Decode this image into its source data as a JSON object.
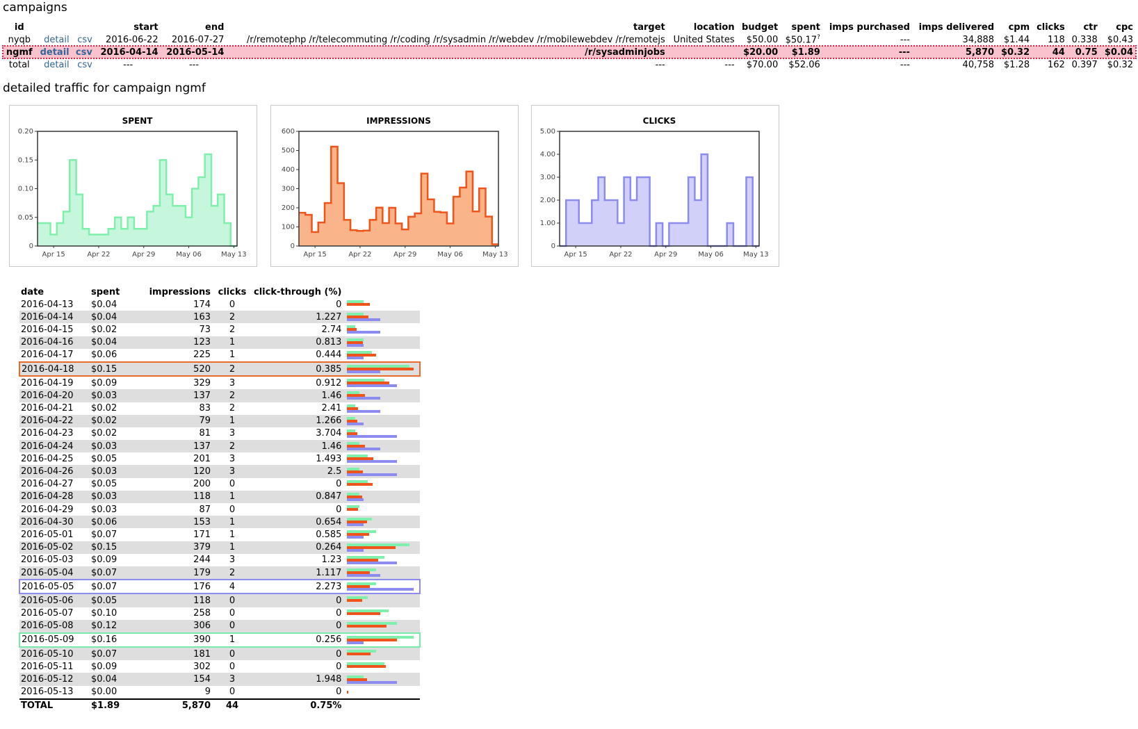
{
  "page": {
    "campaigns_heading": "campaigns",
    "detail_heading": "detailed traffic for campaign ngmf"
  },
  "campaigns": {
    "headers": {
      "id": "id",
      "start": "start",
      "end": "end",
      "target": "target",
      "location": "location",
      "budget": "budget",
      "spent": "spent",
      "imps_purchased": "imps purchased",
      "imps_delivered": "imps delivered",
      "cpm": "cpm",
      "clicks": "clicks",
      "ctr": "ctr",
      "cpc": "cpc"
    },
    "rows": [
      {
        "id": "nyqb",
        "detail": "detail",
        "csv": "csv",
        "start": "2016-06-22",
        "end": "2016-07-27",
        "target": "/r/remotephp /r/telecommuting /r/coding /r/sysadmin /r/webdev /r/mobilewebdev /r/remotejs",
        "location": "United States",
        "budget": "$50.00",
        "spent": "$50.17",
        "spent_note": "?",
        "imps_purchased": "---",
        "imps_delivered": "34,888",
        "cpm": "$1.44",
        "clicks": "118",
        "ctr": "0.338",
        "cpc": "$0.43"
      },
      {
        "id": "ngmf",
        "detail": "detail",
        "csv": "csv",
        "start": "2016-04-14",
        "end": "2016-05-14",
        "target": "/r/sysadminjobs",
        "location": "",
        "budget": "$20.00",
        "spent": "$1.89",
        "spent_note": "",
        "imps_purchased": "---",
        "imps_delivered": "5,870",
        "cpm": "$0.32",
        "clicks": "44",
        "ctr": "0.75",
        "cpc": "$0.04"
      },
      {
        "id": "total",
        "detail": "detail",
        "csv": "csv",
        "start": "---",
        "end": "---",
        "target": "---",
        "location": "---",
        "budget": "$70.00",
        "spent": "$52.06",
        "spent_note": "",
        "imps_purchased": "---",
        "imps_delivered": "40,758",
        "cpm": "$1.28",
        "clicks": "162",
        "ctr": "0.397",
        "cpc": "$0.32"
      }
    ]
  },
  "colors": {
    "spent_fill": "#c6f7dc",
    "spent_line": "#7ff0ac",
    "impr_fill": "#f9b48a",
    "impr_line": "#f0541a",
    "clicks_fill": "#d0d0f8",
    "clicks_line": "#8c8cf0",
    "highlight_row": "#f9c2cc",
    "link": "#336699"
  },
  "chart_data": [
    {
      "type": "area",
      "title": "SPENT",
      "xlabel": "",
      "ylabel": "",
      "ylim": [
        0,
        0.2
      ],
      "yticks": [
        "0",
        "0.05",
        "0.10",
        "0.15",
        "0.20"
      ],
      "ytick_values": [
        0,
        0.05,
        0.1,
        0.15,
        0.2
      ],
      "xticks": [
        "Apr 15",
        "Apr 22",
        "Apr 29",
        "May 06",
        "May 13"
      ],
      "xtick_index": [
        2,
        9,
        16,
        23,
        30
      ],
      "series": [
        {
          "values": [
            0.04,
            0.04,
            0.02,
            0.04,
            0.06,
            0.15,
            0.09,
            0.03,
            0.02,
            0.02,
            0.02,
            0.03,
            0.05,
            0.03,
            0.05,
            0.03,
            0.03,
            0.06,
            0.07,
            0.15,
            0.09,
            0.07,
            0.07,
            0.05,
            0.1,
            0.12,
            0.16,
            0.07,
            0.09,
            0.04,
            0.0
          ]
        }
      ]
    },
    {
      "type": "area",
      "title": "IMPRESSIONS",
      "xlabel": "",
      "ylabel": "",
      "ylim": [
        0,
        600
      ],
      "yticks": [
        "0",
        "100",
        "200",
        "300",
        "400",
        "500",
        "600"
      ],
      "ytick_values": [
        0,
        100,
        200,
        300,
        400,
        500,
        600
      ],
      "xticks": [
        "Apr 15",
        "Apr 22",
        "Apr 29",
        "May 06",
        "May 13"
      ],
      "xtick_index": [
        2,
        9,
        16,
        23,
        30
      ],
      "series": [
        {
          "values": [
            174,
            163,
            73,
            123,
            225,
            520,
            329,
            137,
            83,
            79,
            81,
            137,
            201,
            120,
            200,
            118,
            87,
            153,
            171,
            379,
            244,
            179,
            176,
            118,
            258,
            306,
            390,
            181,
            302,
            154,
            9
          ]
        }
      ]
    },
    {
      "type": "area",
      "title": "CLICKS",
      "xlabel": "",
      "ylabel": "",
      "ylim": [
        0,
        5
      ],
      "yticks": [
        "0",
        "1.00",
        "2.00",
        "3.00",
        "4.00",
        "5.00"
      ],
      "ytick_values": [
        0,
        1,
        2,
        3,
        4,
        5
      ],
      "xticks": [
        "Apr 15",
        "Apr 22",
        "Apr 29",
        "May 06",
        "May 13"
      ],
      "xtick_index": [
        2,
        9,
        16,
        23,
        30
      ],
      "series": [
        {
          "values": [
            0,
            2,
            2,
            1,
            1,
            2,
            3,
            2,
            2,
            1,
            3,
            2,
            3,
            3,
            0,
            1,
            0,
            1,
            1,
            1,
            3,
            2,
            4,
            0,
            0,
            0,
            1,
            0,
            0,
            3,
            0
          ]
        }
      ]
    }
  ],
  "daily": {
    "headers": {
      "date": "date",
      "spent": "spent",
      "impressions": "impressions",
      "clicks": "clicks",
      "ctr": "click-through (%)"
    },
    "rows": [
      {
        "date": "2016-04-13",
        "spent": "$0.04",
        "impressions": "174",
        "clicks": "0",
        "ctr": "0"
      },
      {
        "date": "2016-04-14",
        "spent": "$0.04",
        "impressions": "163",
        "clicks": "2",
        "ctr": "1.227"
      },
      {
        "date": "2016-04-15",
        "spent": "$0.02",
        "impressions": "73",
        "clicks": "2",
        "ctr": "2.74"
      },
      {
        "date": "2016-04-16",
        "spent": "$0.04",
        "impressions": "123",
        "clicks": "1",
        "ctr": "0.813"
      },
      {
        "date": "2016-04-17",
        "spent": "$0.06",
        "impressions": "225",
        "clicks": "1",
        "ctr": "0.444"
      },
      {
        "date": "2016-04-18",
        "spent": "$0.15",
        "impressions": "520",
        "clicks": "2",
        "ctr": "0.385"
      },
      {
        "date": "2016-04-19",
        "spent": "$0.09",
        "impressions": "329",
        "clicks": "3",
        "ctr": "0.912"
      },
      {
        "date": "2016-04-20",
        "spent": "$0.03",
        "impressions": "137",
        "clicks": "2",
        "ctr": "1.46"
      },
      {
        "date": "2016-04-21",
        "spent": "$0.02",
        "impressions": "83",
        "clicks": "2",
        "ctr": "2.41"
      },
      {
        "date": "2016-04-22",
        "spent": "$0.02",
        "impressions": "79",
        "clicks": "1",
        "ctr": "1.266"
      },
      {
        "date": "2016-04-23",
        "spent": "$0.02",
        "impressions": "81",
        "clicks": "3",
        "ctr": "3.704"
      },
      {
        "date": "2016-04-24",
        "spent": "$0.03",
        "impressions": "137",
        "clicks": "2",
        "ctr": "1.46"
      },
      {
        "date": "2016-04-25",
        "spent": "$0.05",
        "impressions": "201",
        "clicks": "3",
        "ctr": "1.493"
      },
      {
        "date": "2016-04-26",
        "spent": "$0.03",
        "impressions": "120",
        "clicks": "3",
        "ctr": "2.5"
      },
      {
        "date": "2016-04-27",
        "spent": "$0.05",
        "impressions": "200",
        "clicks": "0",
        "ctr": "0"
      },
      {
        "date": "2016-04-28",
        "spent": "$0.03",
        "impressions": "118",
        "clicks": "1",
        "ctr": "0.847"
      },
      {
        "date": "2016-04-29",
        "spent": "$0.03",
        "impressions": "87",
        "clicks": "0",
        "ctr": "0"
      },
      {
        "date": "2016-04-30",
        "spent": "$0.06",
        "impressions": "153",
        "clicks": "1",
        "ctr": "0.654"
      },
      {
        "date": "2016-05-01",
        "spent": "$0.07",
        "impressions": "171",
        "clicks": "1",
        "ctr": "0.585"
      },
      {
        "date": "2016-05-02",
        "spent": "$0.15",
        "impressions": "379",
        "clicks": "1",
        "ctr": "0.264"
      },
      {
        "date": "2016-05-03",
        "spent": "$0.09",
        "impressions": "244",
        "clicks": "3",
        "ctr": "1.23"
      },
      {
        "date": "2016-05-04",
        "spent": "$0.07",
        "impressions": "179",
        "clicks": "2",
        "ctr": "1.117"
      },
      {
        "date": "2016-05-05",
        "spent": "$0.07",
        "impressions": "176",
        "clicks": "4",
        "ctr": "2.273"
      },
      {
        "date": "2016-05-06",
        "spent": "$0.05",
        "impressions": "118",
        "clicks": "0",
        "ctr": "0"
      },
      {
        "date": "2016-05-07",
        "spent": "$0.10",
        "impressions": "258",
        "clicks": "0",
        "ctr": "0"
      },
      {
        "date": "2016-05-08",
        "spent": "$0.12",
        "impressions": "306",
        "clicks": "0",
        "ctr": "0"
      },
      {
        "date": "2016-05-09",
        "spent": "$0.16",
        "impressions": "390",
        "clicks": "1",
        "ctr": "0.256"
      },
      {
        "date": "2016-05-10",
        "spent": "$0.07",
        "impressions": "181",
        "clicks": "0",
        "ctr": "0"
      },
      {
        "date": "2016-05-11",
        "spent": "$0.09",
        "impressions": "302",
        "clicks": "0",
        "ctr": "0"
      },
      {
        "date": "2016-05-12",
        "spent": "$0.04",
        "impressions": "154",
        "clicks": "3",
        "ctr": "1.948"
      },
      {
        "date": "2016-05-13",
        "spent": "$0.00",
        "impressions": "9",
        "clicks": "0",
        "ctr": "0"
      }
    ],
    "total": {
      "label": "TOTAL",
      "spent": "$1.89",
      "impressions": "5,870",
      "clicks": "44",
      "ctr": "0.75%"
    },
    "max_row_markers": {
      "impressions": "2016-04-18",
      "clicks": "2016-05-05",
      "spent": "2016-05-09"
    }
  }
}
